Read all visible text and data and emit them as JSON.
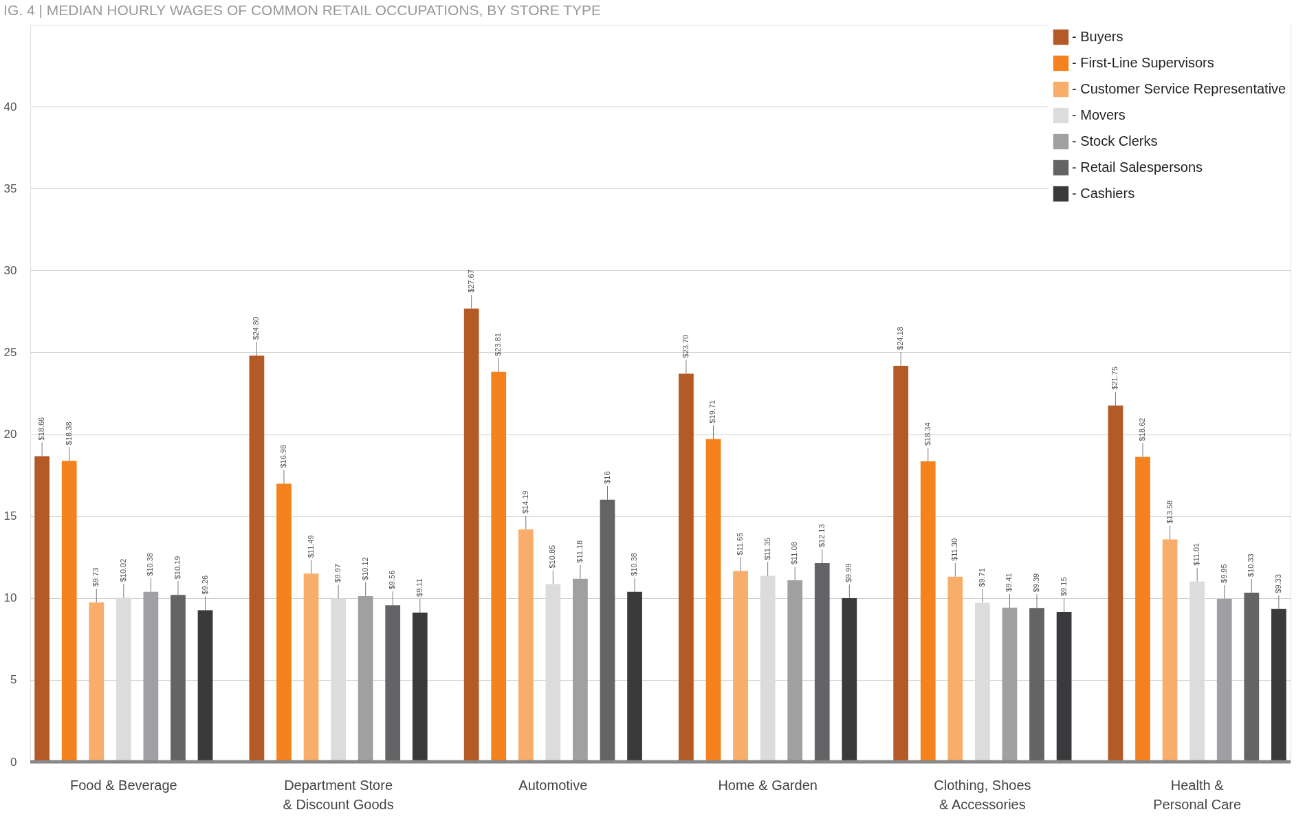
{
  "chart_data": {
    "type": "bar",
    "title": "IG. 4 | MEDIAN HOURLY WAGES OF COMMON RETAIL OCCUPATIONS, BY STORE TYPE",
    "categories": [
      "Food & Beverage",
      "Department Store\n& Discount Goods",
      "Automotive",
      "Home & Garden",
      "Clothing, Shoes\n& Accessories",
      "Health &\nPersonal Care"
    ],
    "series": [
      {
        "name": "- Buyers",
        "color": "#b35a27",
        "values": [
          18.66,
          24.8,
          27.67,
          23.7,
          24.18,
          21.75
        ],
        "value_labels": [
          "$18.66",
          "$24.80",
          "$27.67",
          "$23.70",
          "$24.18",
          "$21.75"
        ]
      },
      {
        "name": "- First-Line Supervisors",
        "color": "#f5821f",
        "values": [
          18.38,
          16.98,
          23.81,
          19.71,
          18.34,
          18.62
        ],
        "value_labels": [
          "$18.38",
          "$16.98",
          "$23.81",
          "$19.71",
          "$18.34",
          "$18.62"
        ]
      },
      {
        "name": "- Customer Service Representative",
        "color": "#f9ad6a",
        "values": [
          9.73,
          11.49,
          14.19,
          11.65,
          11.3,
          13.58
        ],
        "value_labels": [
          "$9.73",
          "$11.49",
          "$14.19",
          "$11.65",
          "$11.30",
          "$13.58"
        ]
      },
      {
        "name": "- Movers",
        "color": "#dcdcdd",
        "values": [
          10.02,
          9.97,
          10.85,
          11.35,
          9.71,
          11.01
        ],
        "value_labels": [
          "$10.02",
          "$9.97",
          "$10.85",
          "$11.35",
          "$9.71",
          "$11.01"
        ]
      },
      {
        "name": "- Stock Clerks",
        "color": "#a0a0a2",
        "values": [
          10.38,
          10.12,
          11.18,
          11.08,
          9.41,
          9.95
        ],
        "value_labels": [
          "$10.38",
          "$10.12",
          "$11.18",
          "$11.08",
          "$9.41",
          "$9.95"
        ]
      },
      {
        "name": "- Retail Salespersons",
        "color": "#646466",
        "values": [
          10.19,
          9.56,
          16,
          12.13,
          9.39,
          10.33
        ],
        "value_labels": [
          "$10.19",
          "$9.56",
          "$16",
          "$12.13",
          "$9.39",
          "$10.33"
        ]
      },
      {
        "name": "- Cashiers",
        "color": "#3a3a3c",
        "values": [
          9.26,
          9.11,
          10.38,
          9.99,
          9.15,
          9.33
        ],
        "value_labels": [
          "$9.26",
          "$9.11",
          "$10.38",
          "$9.99",
          "$9.15",
          "$9.33"
        ]
      }
    ],
    "ylim": [
      0,
      45
    ],
    "yticks": [
      0,
      5,
      10,
      15,
      20,
      25,
      30,
      35,
      40
    ],
    "grid": "y",
    "legend": "top right"
  }
}
